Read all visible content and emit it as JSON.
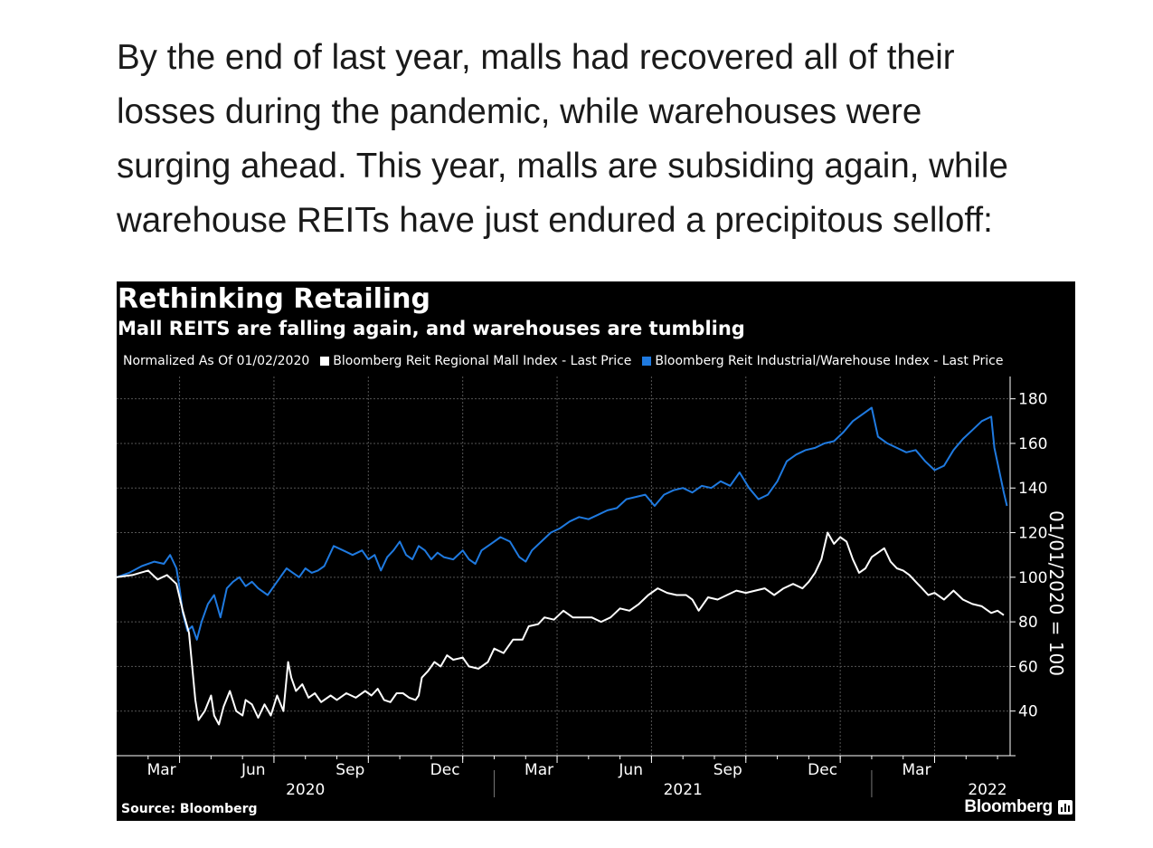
{
  "article": {
    "lines": [
      "By the end of last year, malls had recovered all of their",
      "losses during the pandemic, while warehouses were",
      "surging ahead. This year, malls are subsiding again, while",
      "warehouse REITs have just endured a precipitous selloff:"
    ]
  },
  "colors": {
    "mall": "#ffffff",
    "warehouse": "#1f7ae0",
    "background": "#000000"
  },
  "chart_data": {
    "type": "line",
    "title": "Rethinking Retailing",
    "subtitle": "Mall REITS are falling again, and warehouses are tumbling",
    "legend": {
      "note": "Normalized As Of 01/02/2020",
      "series_labels": [
        "Bloomberg Reit Regional Mall Index - Last Price",
        "Bloomberg Reit Industrial/Warehouse Index - Last Price"
      ]
    },
    "ylabel": "01/01/2020 = 100",
    "ylim": [
      20,
      190
    ],
    "yticks": [
      40,
      60,
      80,
      100,
      120,
      140,
      160,
      180
    ],
    "xlim": [
      0,
      28.4
    ],
    "xunit": "months since 2020-01-01",
    "xticks": [
      {
        "x": 2,
        "label": "Mar"
      },
      {
        "x": 5,
        "label": "Jun"
      },
      {
        "x": 8,
        "label": "Sep"
      },
      {
        "x": 11,
        "label": "Dec"
      },
      {
        "x": 14,
        "label": "Mar"
      },
      {
        "x": 17,
        "label": "Jun"
      },
      {
        "x": 20,
        "label": "Sep"
      },
      {
        "x": 23,
        "label": "Dec"
      },
      {
        "x": 26,
        "label": "Mar"
      }
    ],
    "years": [
      {
        "x": 6,
        "label": "2020"
      },
      {
        "x": 18,
        "label": "2021"
      },
      {
        "x": 30,
        "label": "2022"
      }
    ],
    "year_dividers": [
      12,
      24
    ],
    "series": [
      {
        "name": "Bloomberg Reit Regional Mall Index - Last Price",
        "points": [
          [
            0.0,
            100
          ],
          [
            0.5,
            101
          ],
          [
            1.0,
            103
          ],
          [
            1.3,
            99
          ],
          [
            1.6,
            101
          ],
          [
            1.9,
            97
          ],
          [
            2.1,
            85
          ],
          [
            2.3,
            75
          ],
          [
            2.4,
            60
          ],
          [
            2.5,
            45
          ],
          [
            2.6,
            36
          ],
          [
            2.8,
            40
          ],
          [
            3.0,
            47
          ],
          [
            3.1,
            38
          ],
          [
            3.25,
            34
          ],
          [
            3.4,
            42
          ],
          [
            3.6,
            49
          ],
          [
            3.8,
            40
          ],
          [
            4.0,
            38
          ],
          [
            4.1,
            45
          ],
          [
            4.3,
            43
          ],
          [
            4.5,
            37
          ],
          [
            4.7,
            43
          ],
          [
            4.9,
            38
          ],
          [
            5.1,
            47
          ],
          [
            5.3,
            40
          ],
          [
            5.45,
            62
          ],
          [
            5.55,
            55
          ],
          [
            5.7,
            49
          ],
          [
            5.9,
            52
          ],
          [
            6.1,
            46
          ],
          [
            6.3,
            48
          ],
          [
            6.5,
            44
          ],
          [
            6.8,
            47
          ],
          [
            7.0,
            45
          ],
          [
            7.3,
            48
          ],
          [
            7.6,
            46
          ],
          [
            7.9,
            49
          ],
          [
            8.1,
            47
          ],
          [
            8.3,
            50
          ],
          [
            8.5,
            45
          ],
          [
            8.7,
            44
          ],
          [
            8.9,
            48
          ],
          [
            9.1,
            48
          ],
          [
            9.3,
            46
          ],
          [
            9.5,
            45
          ],
          [
            9.6,
            47
          ],
          [
            9.7,
            55
          ],
          [
            9.9,
            58
          ],
          [
            10.1,
            62
          ],
          [
            10.3,
            60
          ],
          [
            10.5,
            65
          ],
          [
            10.7,
            63
          ],
          [
            11.0,
            64
          ],
          [
            11.2,
            60
          ],
          [
            11.5,
            59
          ],
          [
            11.8,
            62
          ],
          [
            12.0,
            68
          ],
          [
            12.3,
            66
          ],
          [
            12.6,
            72
          ],
          [
            12.9,
            72
          ],
          [
            13.1,
            78
          ],
          [
            13.4,
            79
          ],
          [
            13.6,
            82
          ],
          [
            13.9,
            81
          ],
          [
            14.2,
            85
          ],
          [
            14.5,
            82
          ],
          [
            14.8,
            82
          ],
          [
            15.1,
            82
          ],
          [
            15.4,
            80
          ],
          [
            15.7,
            82
          ],
          [
            16.0,
            86
          ],
          [
            16.3,
            85
          ],
          [
            16.6,
            88
          ],
          [
            16.9,
            92
          ],
          [
            17.2,
            95
          ],
          [
            17.5,
            93
          ],
          [
            17.8,
            92
          ],
          [
            18.1,
            92
          ],
          [
            18.3,
            90
          ],
          [
            18.5,
            85
          ],
          [
            18.8,
            91
          ],
          [
            19.1,
            90
          ],
          [
            19.4,
            92
          ],
          [
            19.7,
            94
          ],
          [
            20.0,
            93
          ],
          [
            20.3,
            94
          ],
          [
            20.6,
            95
          ],
          [
            20.9,
            92
          ],
          [
            21.2,
            95
          ],
          [
            21.5,
            97
          ],
          [
            21.8,
            95
          ],
          [
            22.0,
            98
          ],
          [
            22.2,
            102
          ],
          [
            22.4,
            108
          ],
          [
            22.6,
            120
          ],
          [
            22.8,
            115
          ],
          [
            23.0,
            118
          ],
          [
            23.2,
            116
          ],
          [
            23.4,
            108
          ],
          [
            23.6,
            102
          ],
          [
            23.8,
            104
          ],
          [
            24.0,
            109
          ],
          [
            24.2,
            111
          ],
          [
            24.4,
            113
          ],
          [
            24.6,
            107
          ],
          [
            24.8,
            104
          ],
          [
            25.0,
            103
          ],
          [
            25.2,
            101
          ],
          [
            25.4,
            98
          ],
          [
            25.6,
            95
          ],
          [
            25.8,
            92
          ],
          [
            26.0,
            93
          ],
          [
            26.3,
            90
          ],
          [
            26.6,
            94
          ],
          [
            26.9,
            90
          ],
          [
            27.2,
            88
          ],
          [
            27.5,
            87
          ],
          [
            27.8,
            84
          ],
          [
            28.0,
            85
          ],
          [
            28.2,
            83
          ]
        ]
      },
      {
        "name": "Bloomberg Reit Industrial/Warehouse Index - Last Price",
        "points": [
          [
            0.0,
            100
          ],
          [
            0.4,
            102
          ],
          [
            0.8,
            105
          ],
          [
            1.2,
            107
          ],
          [
            1.5,
            106
          ],
          [
            1.7,
            110
          ],
          [
            1.9,
            104
          ],
          [
            2.0,
            95
          ],
          [
            2.1,
            84
          ],
          [
            2.25,
            76
          ],
          [
            2.4,
            78
          ],
          [
            2.55,
            72
          ],
          [
            2.7,
            80
          ],
          [
            2.9,
            88
          ],
          [
            3.1,
            92
          ],
          [
            3.3,
            82
          ],
          [
            3.5,
            95
          ],
          [
            3.7,
            98
          ],
          [
            3.9,
            100
          ],
          [
            4.1,
            96
          ],
          [
            4.3,
            98
          ],
          [
            4.5,
            95
          ],
          [
            4.8,
            92
          ],
          [
            5.0,
            96
          ],
          [
            5.2,
            100
          ],
          [
            5.4,
            104
          ],
          [
            5.6,
            102
          ],
          [
            5.8,
            100
          ],
          [
            6.0,
            104
          ],
          [
            6.2,
            102
          ],
          [
            6.4,
            103
          ],
          [
            6.6,
            105
          ],
          [
            6.9,
            114
          ],
          [
            7.2,
            112
          ],
          [
            7.5,
            110
          ],
          [
            7.8,
            112
          ],
          [
            8.0,
            108
          ],
          [
            8.2,
            110
          ],
          [
            8.4,
            103
          ],
          [
            8.6,
            109
          ],
          [
            8.8,
            112
          ],
          [
            9.0,
            116
          ],
          [
            9.2,
            110
          ],
          [
            9.4,
            108
          ],
          [
            9.6,
            114
          ],
          [
            9.8,
            112
          ],
          [
            10.0,
            108
          ],
          [
            10.2,
            111
          ],
          [
            10.4,
            109
          ],
          [
            10.7,
            108
          ],
          [
            11.0,
            112
          ],
          [
            11.2,
            108
          ],
          [
            11.4,
            106
          ],
          [
            11.6,
            112
          ],
          [
            11.9,
            115
          ],
          [
            12.2,
            118
          ],
          [
            12.5,
            116
          ],
          [
            12.8,
            109
          ],
          [
            13.0,
            107
          ],
          [
            13.2,
            112
          ],
          [
            13.5,
            116
          ],
          [
            13.8,
            120
          ],
          [
            14.1,
            122
          ],
          [
            14.4,
            125
          ],
          [
            14.7,
            127
          ],
          [
            15.0,
            126
          ],
          [
            15.3,
            128
          ],
          [
            15.6,
            130
          ],
          [
            15.9,
            131
          ],
          [
            16.2,
            135
          ],
          [
            16.5,
            136
          ],
          [
            16.8,
            137
          ],
          [
            17.1,
            132
          ],
          [
            17.4,
            137
          ],
          [
            17.7,
            139
          ],
          [
            18.0,
            140
          ],
          [
            18.3,
            138
          ],
          [
            18.6,
            141
          ],
          [
            18.9,
            140
          ],
          [
            19.2,
            143
          ],
          [
            19.5,
            141
          ],
          [
            19.8,
            147
          ],
          [
            20.1,
            140
          ],
          [
            20.4,
            135
          ],
          [
            20.7,
            137
          ],
          [
            21.0,
            143
          ],
          [
            21.3,
            152
          ],
          [
            21.6,
            155
          ],
          [
            21.9,
            157
          ],
          [
            22.2,
            158
          ],
          [
            22.5,
            160
          ],
          [
            22.8,
            161
          ],
          [
            23.1,
            165
          ],
          [
            23.4,
            170
          ],
          [
            23.7,
            173
          ],
          [
            24.0,
            176
          ],
          [
            24.2,
            163
          ],
          [
            24.5,
            160
          ],
          [
            24.8,
            158
          ],
          [
            25.1,
            156
          ],
          [
            25.4,
            157
          ],
          [
            25.7,
            152
          ],
          [
            26.0,
            148
          ],
          [
            26.3,
            150
          ],
          [
            26.6,
            157
          ],
          [
            26.9,
            162
          ],
          [
            27.2,
            166
          ],
          [
            27.5,
            170
          ],
          [
            27.8,
            172
          ],
          [
            27.9,
            158
          ],
          [
            28.05,
            148
          ],
          [
            28.2,
            138
          ],
          [
            28.3,
            132
          ]
        ]
      }
    ],
    "source": "Source: Bloomberg",
    "brand": "Bloomberg"
  }
}
